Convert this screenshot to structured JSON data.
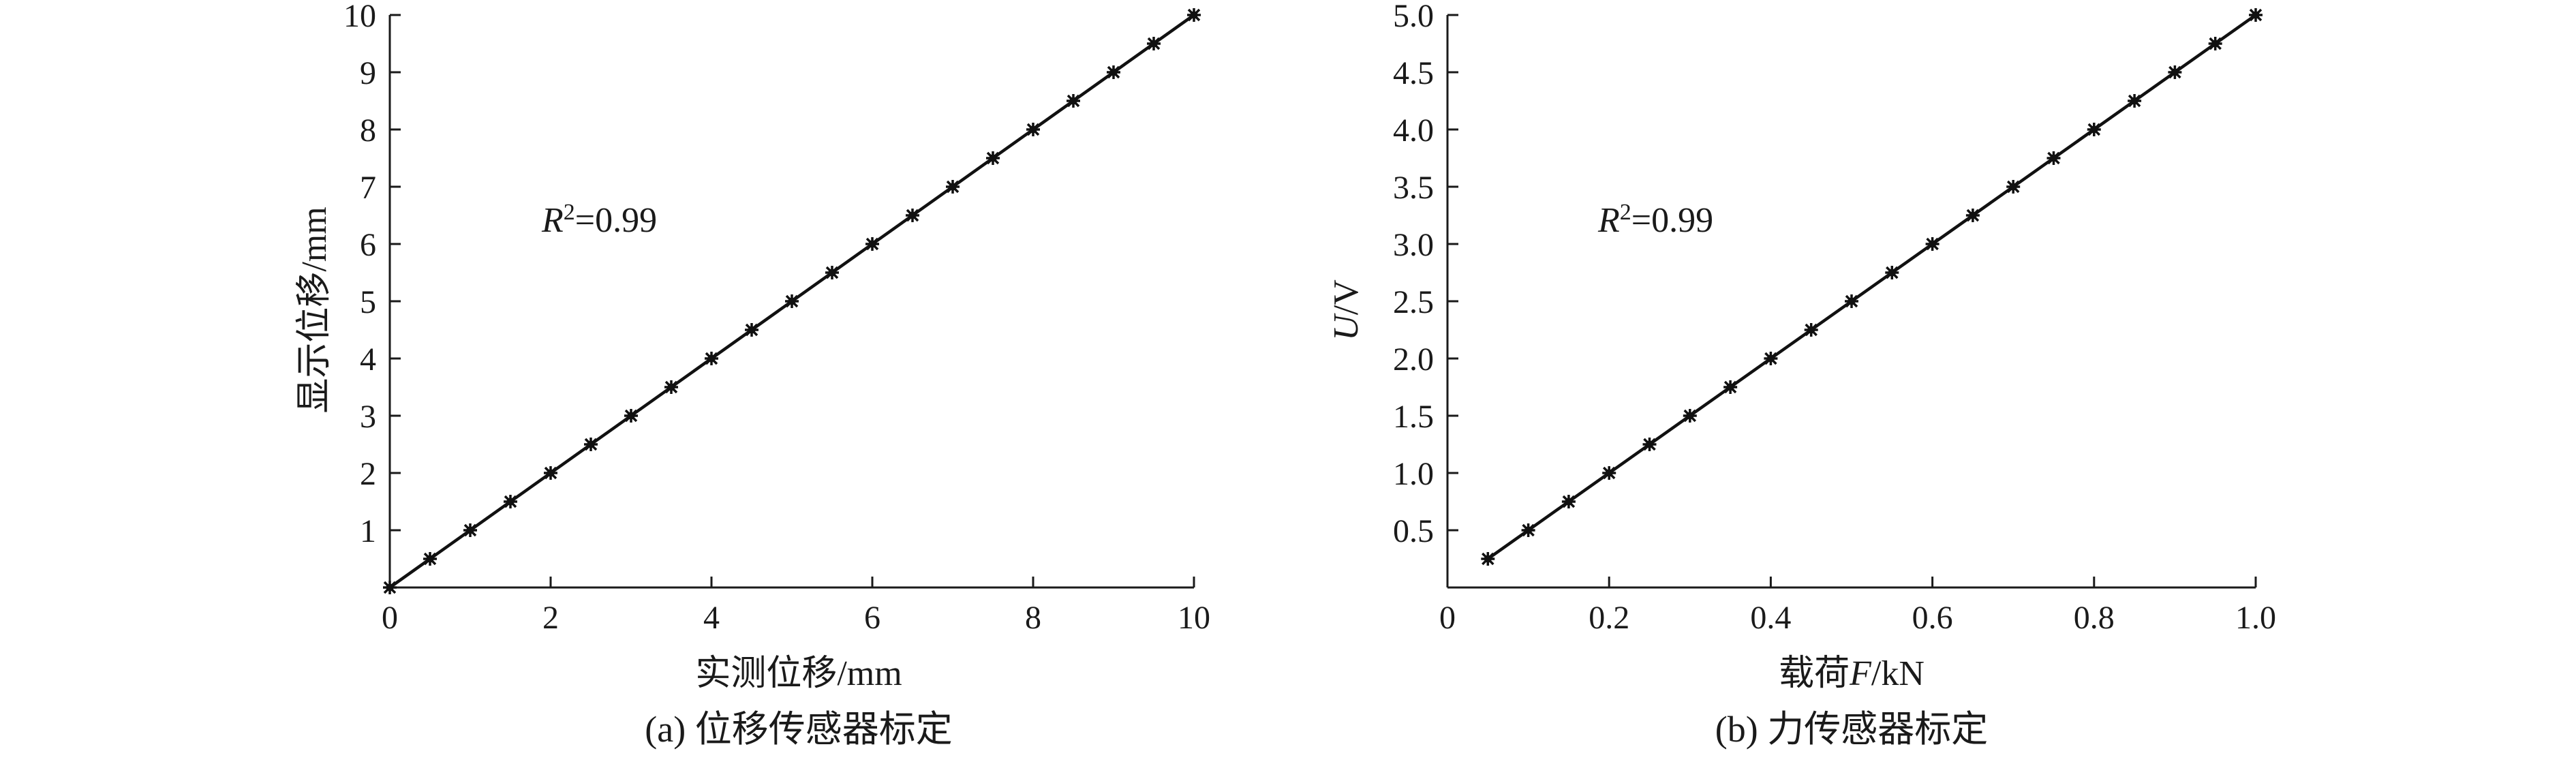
{
  "chart_data": [
    {
      "type": "scatter",
      "panel_caption": "(a) 位移传感器标定",
      "xlabel": "实测位移/mm",
      "ylabel": "显示位移/mm",
      "annotation": {
        "r": "R",
        "sup": "2",
        "rest": "=0.99"
      },
      "xlim": [
        0,
        10
      ],
      "ylim": [
        0,
        10
      ],
      "x_ticks": [
        "0",
        "2",
        "4",
        "6",
        "8",
        "10"
      ],
      "x_tick_values": [
        0,
        2,
        4,
        6,
        8,
        10
      ],
      "y_ticks": [
        "1",
        "2",
        "3",
        "4",
        "5",
        "6",
        "7",
        "8",
        "9",
        "10"
      ],
      "y_tick_values": [
        1,
        2,
        3,
        4,
        5,
        6,
        7,
        8,
        9,
        10
      ],
      "points_x": [
        0,
        0.5,
        1,
        1.5,
        2,
        2.5,
        3,
        3.5,
        4,
        4.5,
        5,
        5.5,
        6,
        6.5,
        7,
        7.5,
        8,
        8.5,
        9,
        9.5,
        10
      ],
      "points_y": [
        0,
        0.5,
        1,
        1.5,
        2,
        2.5,
        3,
        3.5,
        4,
        4.5,
        5,
        5.5,
        6,
        6.5,
        7,
        7.5,
        8,
        8.5,
        9,
        9.5,
        10
      ],
      "fit_line": [
        [
          0,
          0
        ],
        [
          10,
          10
        ]
      ],
      "grid": false
    },
    {
      "type": "scatter",
      "panel_caption": "(b) 力传感器标定",
      "xlabel_parts": [
        "载荷",
        "F",
        "/kN"
      ],
      "ylabel_parts": [
        "U",
        "/V"
      ],
      "annotation": {
        "r": "R",
        "sup": "2",
        "rest": "=0.99"
      },
      "xlim": [
        0,
        1.0
      ],
      "ylim": [
        0,
        5.0
      ],
      "x_ticks": [
        "0",
        "0.2",
        "0.4",
        "0.6",
        "0.8",
        "1.0"
      ],
      "x_tick_values": [
        0,
        0.2,
        0.4,
        0.6,
        0.8,
        1.0
      ],
      "y_ticks": [
        "0.5",
        "1.0",
        "1.5",
        "2.0",
        "2.5",
        "3.0",
        "3.5",
        "4.0",
        "4.5",
        "5.0"
      ],
      "y_tick_values": [
        0.5,
        1.0,
        1.5,
        2.0,
        2.5,
        3.0,
        3.5,
        4.0,
        4.5,
        5.0
      ],
      "points_x": [
        0.05,
        0.1,
        0.15,
        0.2,
        0.25,
        0.3,
        0.35,
        0.4,
        0.45,
        0.5,
        0.55,
        0.6,
        0.65,
        0.7,
        0.75,
        0.8,
        0.85,
        0.9,
        0.95,
        1.0
      ],
      "points_y": [
        0.25,
        0.5,
        0.75,
        1.0,
        1.25,
        1.5,
        1.75,
        2.0,
        2.25,
        2.5,
        2.75,
        3.0,
        3.25,
        3.5,
        3.75,
        4.0,
        4.25,
        4.5,
        4.75,
        5.0
      ],
      "fit_line": [
        [
          0.05,
          0.25
        ],
        [
          1.0,
          5.0
        ]
      ],
      "grid": false
    }
  ]
}
